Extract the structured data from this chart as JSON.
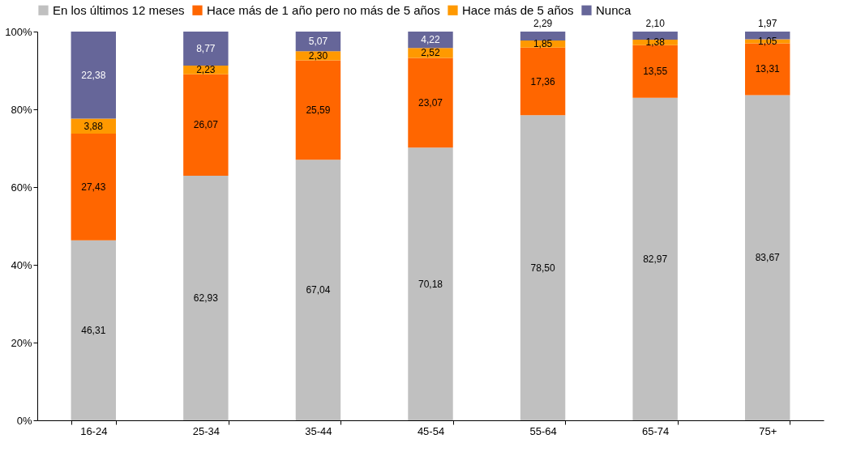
{
  "chart_data": {
    "type": "bar",
    "stacked": true,
    "legend": "top",
    "grid": false,
    "categories": [
      "16-24",
      "25-34",
      "35-44",
      "45-54",
      "55-64",
      "65-74",
      "75+"
    ],
    "ylim": [
      0,
      100
    ],
    "yticks": [
      {
        "value": 0,
        "label": "0%"
      },
      {
        "value": 20,
        "label": "20%"
      },
      {
        "value": 40,
        "label": "40%"
      },
      {
        "value": 60,
        "label": "60%"
      },
      {
        "value": 80,
        "label": "80%"
      },
      {
        "value": 100,
        "label": "100%"
      }
    ],
    "series": [
      {
        "name": "En los últimos 12 meses",
        "color": "#c0c0c0",
        "values": [
          46.31,
          62.93,
          67.04,
          70.18,
          78.5,
          82.97,
          83.67
        ],
        "value_labels": [
          "46,31",
          "62,93",
          "67,04",
          "70,18",
          "78,50",
          "82,97",
          "83,67"
        ]
      },
      {
        "name": "Hace más de 1 año pero no más de 5 años",
        "color": "#ff6600",
        "values": [
          27.43,
          26.07,
          25.59,
          23.07,
          17.36,
          13.55,
          13.31
        ],
        "value_labels": [
          "27,43",
          "26,07",
          "25,59",
          "23,07",
          "17,36",
          "13,55",
          "13,31"
        ]
      },
      {
        "name": "Hace más de 5 años",
        "color": "#ff9900",
        "values": [
          3.88,
          2.23,
          2.3,
          2.52,
          1.85,
          1.38,
          1.05
        ],
        "value_labels": [
          "3,88",
          "2,23",
          "2,30",
          "2,52",
          "1,85",
          "1,38",
          "1,05"
        ]
      },
      {
        "name": "Nunca",
        "color": "#666699",
        "values": [
          22.38,
          8.77,
          5.07,
          4.22,
          2.29,
          2.1,
          1.97
        ],
        "value_labels": [
          "22,38",
          "8,77",
          "5,07",
          "4,22",
          "2,29",
          "2,10",
          "1,97"
        ]
      }
    ]
  }
}
